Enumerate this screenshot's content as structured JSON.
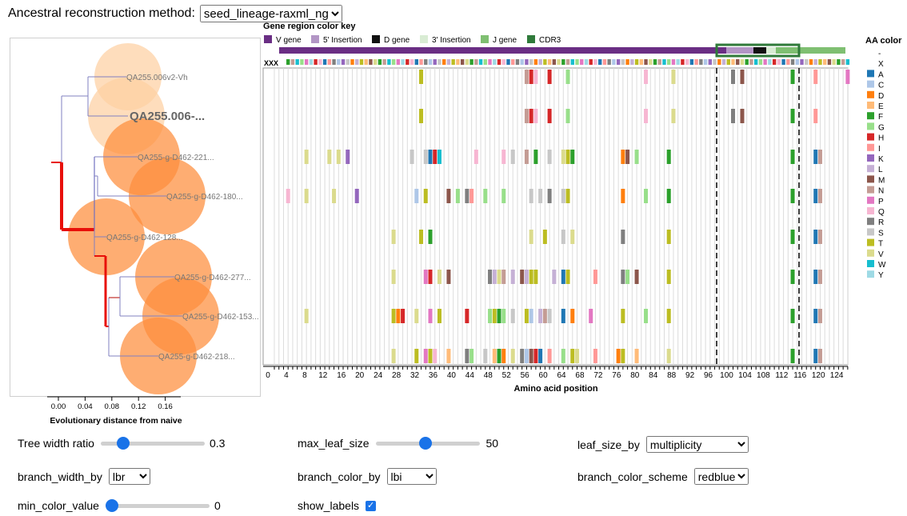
{
  "top": {
    "label": "Ancestral reconstruction method:",
    "method": "seed_lineage-raxml_ng"
  },
  "tree": {
    "xlabel": "Evolutionary distance from naive",
    "ticks": [
      "0.00",
      "0.04",
      "0.08",
      "0.12",
      "0.16"
    ],
    "leaves": [
      {
        "label": "QA255.006v2-Vh",
        "color": "#fdd0a2",
        "bold": false
      },
      {
        "label": "QA255.006-...",
        "color": "#fdd0a2",
        "bold": true
      },
      {
        "label": "QA255-g-D462-221...",
        "color": "#fd8d3c",
        "bold": false
      },
      {
        "label": "QA255-g-D462-180...",
        "color": "#fd8d3c",
        "bold": false
      },
      {
        "label": "QA255-g-D462-128...",
        "color": "#fd8d3c",
        "bold": false
      },
      {
        "label": "QA255-g-D462-277...",
        "color": "#fd8d3c",
        "bold": false
      },
      {
        "label": "QA255-g-D462-153...",
        "color": "#fd8d3c",
        "bold": false
      },
      {
        "label": "QA255-g-D462-218...",
        "color": "#fd8d3c",
        "bold": false
      }
    ]
  },
  "gene_key": {
    "title": "Gene region color key",
    "items": [
      {
        "label": "V gene",
        "color": "#6a2e84"
      },
      {
        "label": "5' Insertion",
        "color": "#b295c5"
      },
      {
        "label": "D gene",
        "color": "#111111"
      },
      {
        "label": "3' Insertion",
        "color": "#d9ecd4"
      },
      {
        "label": "J gene",
        "color": "#7fbf72"
      },
      {
        "label": "CDR3",
        "color": "#2f7a3a"
      }
    ]
  },
  "aa_key": {
    "title": "AA color",
    "items": [
      {
        "aa": "-",
        "color": ""
      },
      {
        "aa": "X",
        "color": ""
      },
      {
        "aa": "A",
        "color": "#1f77b4"
      },
      {
        "aa": "C",
        "color": "#aec7e8"
      },
      {
        "aa": "D",
        "color": "#ff7f0e"
      },
      {
        "aa": "E",
        "color": "#ffbb78"
      },
      {
        "aa": "F",
        "color": "#2ca02c"
      },
      {
        "aa": "G",
        "color": "#98df8a"
      },
      {
        "aa": "H",
        "color": "#d62728"
      },
      {
        "aa": "I",
        "color": "#ff9896"
      },
      {
        "aa": "K",
        "color": "#9467bd"
      },
      {
        "aa": "L",
        "color": "#c5b0d5"
      },
      {
        "aa": "M",
        "color": "#8c564b"
      },
      {
        "aa": "N",
        "color": "#c49c94"
      },
      {
        "aa": "P",
        "color": "#e377c2"
      },
      {
        "aa": "Q",
        "color": "#f7b6d2"
      },
      {
        "aa": "R",
        "color": "#7f7f7f"
      },
      {
        "aa": "S",
        "color": "#c7c7c7"
      },
      {
        "aa": "T",
        "color": "#bcbd22"
      },
      {
        "aa": "V",
        "color": "#dbdb8d"
      },
      {
        "aa": "W",
        "color": "#17becf"
      },
      {
        "aa": "Y",
        "color": "#9edae5"
      }
    ]
  },
  "msa": {
    "xlabel": "Amino acid position",
    "naive_prefix": "XXX",
    "ticks": [
      "0",
      "4",
      "8",
      "12",
      "16",
      "20",
      "24",
      "28",
      "32",
      "36",
      "40",
      "44",
      "48",
      "52",
      "56",
      "60",
      "64",
      "68",
      "72",
      "76",
      "80",
      "84",
      "88",
      "92",
      "96",
      "100",
      "104",
      "108",
      "112",
      "116",
      "120",
      "124"
    ],
    "n_positions": 126,
    "rows": [
      [
        [
          32,
          "T"
        ],
        [
          55,
          "N"
        ],
        [
          56,
          "H"
        ],
        [
          57,
          "Q"
        ],
        [
          60,
          "H"
        ],
        [
          64,
          "G"
        ],
        [
          81,
          "Q"
        ],
        [
          87,
          "V"
        ],
        [
          100,
          "R"
        ],
        [
          102,
          "M"
        ],
        [
          113,
          "F"
        ],
        [
          118,
          "I"
        ],
        [
          125,
          "P"
        ]
      ],
      [
        [
          32,
          "T"
        ],
        [
          55,
          "N"
        ],
        [
          56,
          "H"
        ],
        [
          57,
          "Q"
        ],
        [
          60,
          "H"
        ],
        [
          64,
          "G"
        ],
        [
          81,
          "Q"
        ],
        [
          87,
          "V"
        ],
        [
          100,
          "R"
        ],
        [
          102,
          "M"
        ],
        [
          113,
          "F"
        ],
        [
          118,
          "I"
        ]
      ],
      [
        [
          7,
          "V"
        ],
        [
          12,
          "V"
        ],
        [
          14,
          "V"
        ],
        [
          16,
          "K"
        ],
        [
          30,
          "S"
        ],
        [
          33,
          "S"
        ],
        [
          34,
          "A"
        ],
        [
          35,
          "H"
        ],
        [
          36,
          "W"
        ],
        [
          44,
          "Q"
        ],
        [
          50,
          "Q"
        ],
        [
          52,
          "S"
        ],
        [
          55,
          "N"
        ],
        [
          57,
          "F"
        ],
        [
          60,
          "S"
        ],
        [
          63,
          "V"
        ],
        [
          64,
          "T"
        ],
        [
          65,
          "F"
        ],
        [
          76,
          "D"
        ],
        [
          77,
          "M"
        ],
        [
          79,
          "G"
        ],
        [
          86,
          "F"
        ],
        [
          113,
          "F"
        ],
        [
          118,
          "A"
        ],
        [
          119,
          "N"
        ]
      ],
      [
        [
          3,
          "Q"
        ],
        [
          7,
          "V"
        ],
        [
          13,
          "V"
        ],
        [
          18,
          "K"
        ],
        [
          31,
          "C"
        ],
        [
          33,
          "T"
        ],
        [
          38,
          "M"
        ],
        [
          40,
          "G"
        ],
        [
          42,
          "R"
        ],
        [
          43,
          "I"
        ],
        [
          46,
          "G"
        ],
        [
          50,
          "G"
        ],
        [
          56,
          "S"
        ],
        [
          58,
          "S"
        ],
        [
          60,
          "R"
        ],
        [
          63,
          "S"
        ],
        [
          64,
          "T"
        ],
        [
          76,
          "D"
        ],
        [
          81,
          "G"
        ],
        [
          86,
          "F"
        ],
        [
          113,
          "F"
        ],
        [
          118,
          "A"
        ],
        [
          119,
          "N"
        ]
      ],
      [
        [
          26,
          "V"
        ],
        [
          32,
          "T"
        ],
        [
          34,
          "F"
        ],
        [
          56,
          "V"
        ],
        [
          59,
          "T"
        ],
        [
          63,
          "S"
        ],
        [
          65,
          "V"
        ],
        [
          76,
          "R"
        ],
        [
          86,
          "T"
        ],
        [
          113,
          "F"
        ],
        [
          118,
          "A"
        ],
        [
          119,
          "N"
        ]
      ],
      [
        [
          26,
          "V"
        ],
        [
          33,
          "P"
        ],
        [
          34,
          "H"
        ],
        [
          36,
          "V"
        ],
        [
          38,
          "M"
        ],
        [
          47,
          "R"
        ],
        [
          48,
          "L"
        ],
        [
          49,
          "V"
        ],
        [
          50,
          "N"
        ],
        [
          52,
          "L"
        ],
        [
          54,
          "M"
        ],
        [
          55,
          "L"
        ],
        [
          56,
          "T"
        ],
        [
          57,
          "T"
        ],
        [
          61,
          "L"
        ],
        [
          63,
          "A"
        ],
        [
          64,
          "T"
        ],
        [
          70,
          "I"
        ],
        [
          76,
          "R"
        ],
        [
          77,
          "G"
        ],
        [
          79,
          "M"
        ],
        [
          86,
          "T"
        ],
        [
          113,
          "F"
        ],
        [
          118,
          "A"
        ],
        [
          119,
          "N"
        ]
      ],
      [
        [
          7,
          "V"
        ],
        [
          26,
          "T"
        ],
        [
          27,
          "D"
        ],
        [
          28,
          "H"
        ],
        [
          31,
          "V"
        ],
        [
          34,
          "P"
        ],
        [
          36,
          "T"
        ],
        [
          42,
          "H"
        ],
        [
          47,
          "G"
        ],
        [
          48,
          "T"
        ],
        [
          49,
          "F"
        ],
        [
          50,
          "G"
        ],
        [
          52,
          "S"
        ],
        [
          55,
          "T"
        ],
        [
          56,
          "C"
        ],
        [
          58,
          "L"
        ],
        [
          59,
          "N"
        ],
        [
          60,
          "S"
        ],
        [
          63,
          "A"
        ],
        [
          65,
          "D"
        ],
        [
          69,
          "P"
        ],
        [
          76,
          "T"
        ],
        [
          81,
          "G"
        ],
        [
          86,
          "T"
        ],
        [
          113,
          "F"
        ],
        [
          118,
          "A"
        ],
        [
          119,
          "N"
        ]
      ],
      [
        [
          26,
          "V"
        ],
        [
          31,
          "T"
        ],
        [
          33,
          "P"
        ],
        [
          34,
          "T"
        ],
        [
          35,
          "Q"
        ],
        [
          38,
          "E"
        ],
        [
          42,
          "R"
        ],
        [
          43,
          "G"
        ],
        [
          46,
          "S"
        ],
        [
          48,
          "E"
        ],
        [
          49,
          "F"
        ],
        [
          50,
          "D"
        ],
        [
          52,
          "V"
        ],
        [
          54,
          "R"
        ],
        [
          55,
          "C"
        ],
        [
          56,
          "M"
        ],
        [
          57,
          "H"
        ],
        [
          58,
          "A"
        ],
        [
          60,
          "I"
        ],
        [
          63,
          "G"
        ],
        [
          65,
          "T"
        ],
        [
          66,
          "V"
        ],
        [
          70,
          "I"
        ],
        [
          75,
          "D"
        ],
        [
          76,
          "T"
        ],
        [
          79,
          "E"
        ],
        [
          86,
          "V"
        ],
        [
          113,
          "F"
        ],
        [
          118,
          "A"
        ],
        [
          119,
          "N"
        ]
      ]
    ]
  },
  "controls": {
    "tree_width_ratio": {
      "label": "Tree width ratio",
      "value": "0.3",
      "fraction": 0.18
    },
    "max_leaf_size": {
      "label": "max_leaf_size",
      "value": "50",
      "fraction": 0.48
    },
    "leaf_size_by": {
      "label": "leaf_size_by",
      "value": "multiplicity"
    },
    "branch_width_by": {
      "label": "branch_width_by",
      "value": "lbr"
    },
    "branch_color_by": {
      "label": "branch_color_by",
      "value": "lbi"
    },
    "branch_color_scheme": {
      "label": "branch_color_scheme",
      "value": "redblue"
    },
    "min_color_value": {
      "label": "min_color_value",
      "value": "0",
      "fraction": 0.0
    },
    "show_labels": {
      "label": "show_labels",
      "checked": true
    }
  }
}
